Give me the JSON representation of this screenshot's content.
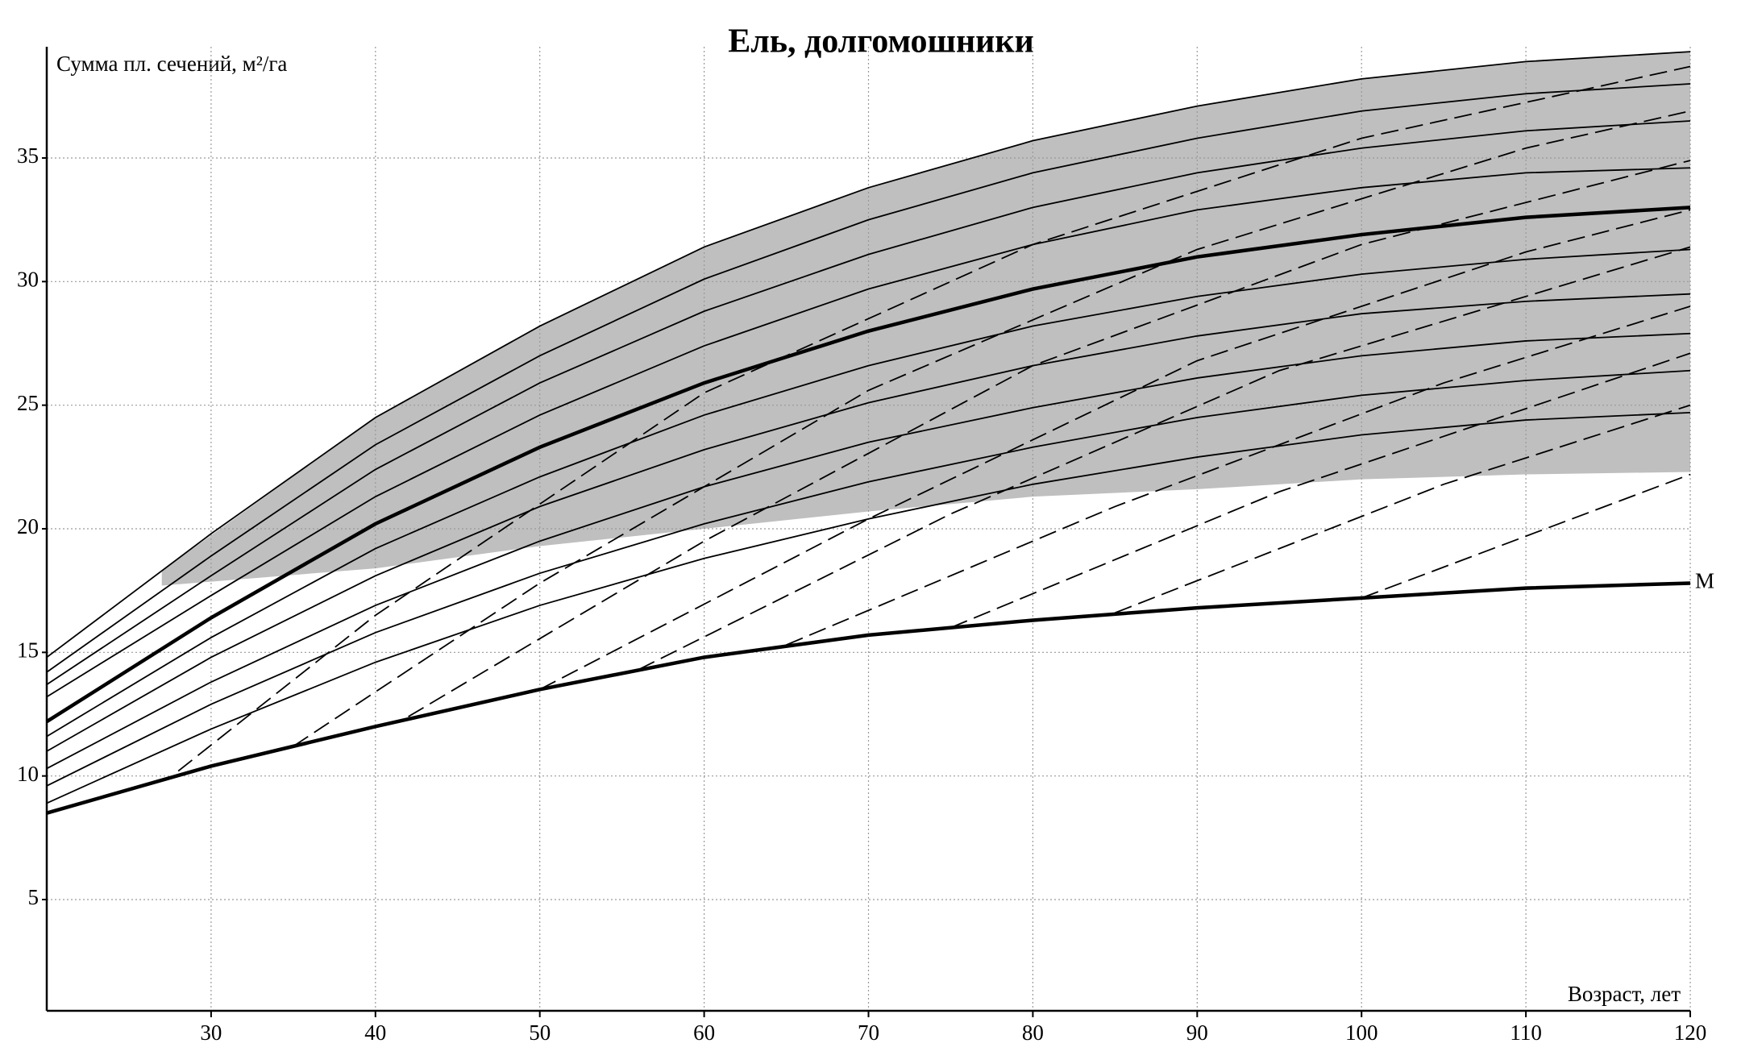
{
  "chart_data": {
    "type": "line",
    "title": "Ель, долгомошники",
    "ylabel": "Сумма пл. сечений, м²/га",
    "xlabel": "Возраст, лет",
    "xlim": [
      20,
      120
    ],
    "ylim": [
      0.5,
      39.5
    ],
    "xticks": [
      30,
      40,
      50,
      60,
      70,
      80,
      90,
      100,
      110,
      120
    ],
    "yticks": [
      5,
      10,
      15,
      20,
      25,
      30,
      35
    ],
    "grid": true,
    "x": [
      20,
      30,
      40,
      50,
      60,
      70,
      80,
      90,
      100,
      110,
      120
    ],
    "band": {
      "color": "#b4b4b4",
      "x": [
        27,
        40,
        50,
        60,
        70,
        80,
        90,
        100,
        110,
        120
      ],
      "upper": [
        18.3,
        24.5,
        28.2,
        31.4,
        33.8,
        35.7,
        37.1,
        38.2,
        38.9,
        39.3
      ],
      "lower": [
        17.7,
        18.4,
        19.3,
        20.0,
        20.7,
        21.3,
        21.6,
        22.0,
        22.2,
        22.3
      ]
    },
    "series": [
      {
        "style": "solid",
        "color": "#000000",
        "values": [
          14.8,
          19.8,
          24.5,
          28.2,
          31.4,
          33.8,
          35.7,
          37.1,
          38.2,
          38.9,
          39.3
        ]
      },
      {
        "style": "solid",
        "color": "#000000",
        "values": [
          14.2,
          18.9,
          23.4,
          27.0,
          30.1,
          32.5,
          34.4,
          35.8,
          36.9,
          37.6,
          38.0
        ]
      },
      {
        "style": "solid",
        "color": "#000000",
        "values": [
          13.7,
          18.1,
          22.4,
          25.9,
          28.8,
          31.1,
          33.0,
          34.4,
          35.4,
          36.1,
          36.5
        ]
      },
      {
        "style": "solid",
        "color": "#000000",
        "values": [
          13.2,
          17.3,
          21.3,
          24.6,
          27.4,
          29.7,
          31.5,
          32.9,
          33.8,
          34.4,
          34.6
        ]
      },
      {
        "style": "bold",
        "color": "#000000",
        "values": [
          12.2,
          16.4,
          20.2,
          23.3,
          25.9,
          28.0,
          29.7,
          31.0,
          31.9,
          32.6,
          33.0
        ]
      },
      {
        "style": "solid",
        "color": "#000000",
        "values": [
          11.6,
          15.6,
          19.2,
          22.1,
          24.6,
          26.6,
          28.2,
          29.4,
          30.3,
          30.9,
          31.3
        ]
      },
      {
        "style": "solid",
        "color": "#000000",
        "values": [
          11.0,
          14.8,
          18.1,
          20.9,
          23.2,
          25.1,
          26.6,
          27.8,
          28.7,
          29.2,
          29.5
        ]
      },
      {
        "style": "solid",
        "color": "#000000",
        "values": [
          10.3,
          13.8,
          16.9,
          19.5,
          21.7,
          23.5,
          24.9,
          26.1,
          27.0,
          27.6,
          27.9
        ]
      },
      {
        "style": "solid",
        "color": "#000000",
        "values": [
          9.6,
          12.9,
          15.8,
          18.2,
          20.2,
          21.9,
          23.3,
          24.5,
          25.4,
          26.0,
          26.4
        ]
      },
      {
        "style": "solid",
        "color": "#000000",
        "values": [
          8.9,
          11.9,
          14.6,
          16.9,
          18.8,
          20.4,
          21.8,
          22.9,
          23.8,
          24.4,
          24.7
        ]
      },
      {
        "name": "М",
        "style": "bold",
        "color": "#000000",
        "values": [
          8.5,
          10.4,
          12.0,
          13.5,
          14.8,
          15.7,
          16.3,
          16.8,
          17.2,
          17.6,
          17.8
        ]
      },
      {
        "style": "dashed",
        "color": "#000000",
        "x": [
          28,
          40,
          60,
          80,
          100,
          120
        ],
        "values": [
          10.2,
          16.5,
          25.5,
          31.5,
          35.8,
          38.7
        ]
      },
      {
        "style": "dashed",
        "color": "#000000",
        "x": [
          35,
          50,
          70,
          90,
          110,
          120
        ],
        "values": [
          11.2,
          17.8,
          25.6,
          31.3,
          35.4,
          36.9
        ]
      },
      {
        "style": "dashed",
        "color": "#000000",
        "x": [
          42,
          60,
          80,
          100,
          120
        ],
        "values": [
          12.4,
          19.5,
          26.6,
          31.5,
          34.9
        ]
      },
      {
        "style": "dashed",
        "color": "#000000",
        "x": [
          50,
          70,
          90,
          110,
          120
        ],
        "values": [
          13.5,
          20.4,
          26.8,
          31.2,
          32.9
        ]
      },
      {
        "style": "dashed",
        "color": "#000000",
        "x": [
          56,
          75,
          95,
          120
        ],
        "values": [
          14.3,
          20.6,
          26.4,
          31.4
        ]
      },
      {
        "style": "dashed",
        "color": "#000000",
        "x": [
          65,
          85,
          105,
          120
        ],
        "values": [
          15.3,
          20.9,
          25.9,
          29.0
        ]
      },
      {
        "style": "dashed",
        "color": "#000000",
        "x": [
          75,
          95,
          120
        ],
        "values": [
          16.0,
          21.5,
          27.1
        ]
      },
      {
        "style": "dashed",
        "color": "#000000",
        "x": [
          85,
          105,
          120
        ],
        "values": [
          16.6,
          21.8,
          25.0
        ]
      },
      {
        "style": "dashed",
        "color": "#000000",
        "x": [
          100,
          120
        ],
        "values": [
          17.2,
          22.2
        ]
      }
    ]
  }
}
